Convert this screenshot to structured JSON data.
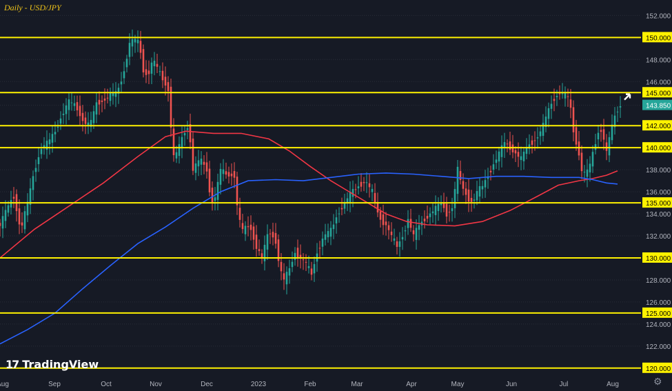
{
  "chart_data": {
    "type": "candlestick",
    "title": "Daily - USD/JPY",
    "ylim": [
      119.3,
      153.4
    ],
    "y_ticks": [
      "152.000",
      "150.000",
      "148.000",
      "146.000",
      "145.000",
      "143.850",
      "142.000",
      "140.000",
      "138.000",
      "136.000",
      "135.000",
      "134.000",
      "132.000",
      "130.000",
      "128.000",
      "126.000",
      "125.000",
      "124.000",
      "122.000",
      "120.000"
    ],
    "x_tick_labels": [
      "Aug",
      "Sep",
      "Oct",
      "Nov",
      "Dec",
      "2023",
      "Feb",
      "Mar",
      "Apr",
      "May",
      "Jun",
      "Jul",
      "Aug"
    ],
    "horizontal_levels": [
      150,
      145,
      142,
      140,
      135,
      130,
      125,
      120
    ],
    "last_price": "143.850",
    "price_path": [
      [
        0,
        133.0
      ],
      [
        10,
        134.5
      ],
      [
        20,
        135.6
      ],
      [
        30,
        132.5
      ],
      [
        40,
        135.0
      ],
      [
        50,
        138.0
      ],
      [
        60,
        140.0
      ],
      [
        70,
        140.5
      ],
      [
        80,
        141.5
      ],
      [
        90,
        143.0
      ],
      [
        100,
        144.2
      ],
      [
        110,
        143.8
      ],
      [
        120,
        142.5
      ],
      [
        130,
        142.0
      ],
      [
        140,
        144.0
      ],
      [
        150,
        144.3
      ],
      [
        160,
        144.8
      ],
      [
        170,
        145.0
      ],
      [
        180,
        147.0
      ],
      [
        188,
        149.5
      ],
      [
        196,
        149.8
      ],
      [
        202,
        149.5
      ],
      [
        208,
        147.0
      ],
      [
        214,
        146.5
      ],
      [
        222,
        148.0
      ],
      [
        230,
        147.0
      ],
      [
        238,
        146.0
      ],
      [
        246,
        145.0
      ],
      [
        250,
        139.0
      ],
      [
        256,
        139.5
      ],
      [
        262,
        140.5
      ],
      [
        268,
        141.5
      ],
      [
        274,
        142.0
      ],
      [
        280,
        138.0
      ],
      [
        290,
        139.0
      ],
      [
        300,
        138.0
      ],
      [
        306,
        135.0
      ],
      [
        312,
        135.5
      ],
      [
        320,
        138.0
      ],
      [
        330,
        137.5
      ],
      [
        340,
        137.5
      ],
      [
        345,
        134.0
      ],
      [
        352,
        132.5
      ],
      [
        362,
        133.0
      ],
      [
        372,
        131.0
      ],
      [
        380,
        130.0
      ],
      [
        390,
        132.5
      ],
      [
        400,
        131.5
      ],
      [
        406,
        129.0
      ],
      [
        412,
        128.0
      ],
      [
        420,
        129.0
      ],
      [
        428,
        130.5
      ],
      [
        436,
        130.0
      ],
      [
        444,
        129.5
      ],
      [
        452,
        128.5
      ],
      [
        460,
        130.5
      ],
      [
        470,
        132.0
      ],
      [
        480,
        132.5
      ],
      [
        490,
        134.0
      ],
      [
        500,
        135.0
      ],
      [
        510,
        136.0
      ],
      [
        520,
        136.5
      ],
      [
        530,
        137.0
      ],
      [
        540,
        136.0
      ],
      [
        546,
        134.5
      ],
      [
        552,
        133.5
      ],
      [
        560,
        133.0
      ],
      [
        568,
        132.0
      ],
      [
        576,
        131.0
      ],
      [
        584,
        132.0
      ],
      [
        592,
        133.5
      ],
      [
        600,
        132.0
      ],
      [
        608,
        133.0
      ],
      [
        616,
        133.5
      ],
      [
        624,
        134.0
      ],
      [
        632,
        134.5
      ],
      [
        640,
        135.0
      ],
      [
        648,
        134.0
      ],
      [
        656,
        134.5
      ],
      [
        664,
        138.0
      ],
      [
        670,
        136.5
      ],
      [
        678,
        135.5
      ],
      [
        686,
        135.0
      ],
      [
        692,
        136.0
      ],
      [
        700,
        136.5
      ],
      [
        708,
        137.5
      ],
      [
        716,
        138.5
      ],
      [
        724,
        139.5
      ],
      [
        732,
        140.5
      ],
      [
        740,
        140.0
      ],
      [
        748,
        139.5
      ],
      [
        756,
        139.0
      ],
      [
        764,
        140.0
      ],
      [
        772,
        140.5
      ],
      [
        780,
        141.0
      ],
      [
        788,
        142.0
      ],
      [
        796,
        143.5
      ],
      [
        804,
        144.5
      ],
      [
        812,
        145.0
      ],
      [
        818,
        144.8
      ],
      [
        826,
        144.5
      ],
      [
        832,
        141.5
      ],
      [
        838,
        140.0
      ],
      [
        844,
        138.0
      ],
      [
        850,
        137.5
      ],
      [
        856,
        138.5
      ],
      [
        862,
        140.0
      ],
      [
        868,
        141.5
      ],
      [
        874,
        141.5
      ],
      [
        880,
        139.5
      ],
      [
        886,
        141.5
      ],
      [
        890,
        142.5
      ],
      [
        896,
        143.5
      ],
      [
        900,
        143.85
      ]
    ],
    "series": [
      {
        "name": "",
        "color": "#f23645",
        "points": [
          [
            0,
            130.0
          ],
          [
            50,
            132.6
          ],
          [
            100,
            134.7
          ],
          [
            150,
            136.8
          ],
          [
            200,
            139.2
          ],
          [
            240,
            141.0
          ],
          [
            270,
            141.5
          ],
          [
            310,
            141.3
          ],
          [
            350,
            141.3
          ],
          [
            390,
            140.8
          ],
          [
            420,
            139.7
          ],
          [
            450,
            138.3
          ],
          [
            480,
            137.0
          ],
          [
            520,
            135.5
          ],
          [
            560,
            134.0
          ],
          [
            590,
            133.3
          ],
          [
            620,
            133.0
          ],
          [
            660,
            132.9
          ],
          [
            700,
            133.3
          ],
          [
            740,
            134.3
          ],
          [
            780,
            135.6
          ],
          [
            810,
            136.6
          ],
          [
            840,
            137.0
          ],
          [
            860,
            137.2
          ],
          [
            880,
            137.5
          ],
          [
            896,
            137.9
          ]
        ]
      },
      {
        "name": "",
        "color": "#2962ff",
        "points": [
          [
            0,
            122.2
          ],
          [
            40,
            123.5
          ],
          [
            80,
            125.0
          ],
          [
            120,
            127.2
          ],
          [
            160,
            129.3
          ],
          [
            200,
            131.3
          ],
          [
            240,
            132.8
          ],
          [
            280,
            134.5
          ],
          [
            320,
            136.0
          ],
          [
            360,
            137.0
          ],
          [
            400,
            137.1
          ],
          [
            440,
            137.0
          ],
          [
            480,
            137.3
          ],
          [
            520,
            137.6
          ],
          [
            560,
            137.7
          ],
          [
            600,
            137.6
          ],
          [
            640,
            137.4
          ],
          [
            680,
            137.2
          ],
          [
            720,
            137.4
          ],
          [
            760,
            137.4
          ],
          [
            800,
            137.3
          ],
          [
            840,
            137.3
          ],
          [
            860,
            137.1
          ],
          [
            880,
            136.8
          ],
          [
            896,
            136.7
          ]
        ]
      }
    ],
    "grid": true,
    "legend": "none"
  },
  "watermark": "TradingView",
  "colors": {
    "background": "#161a25",
    "level_line": "#fff200",
    "up_candle": "#26a69a",
    "down_candle": "#ef5350",
    "axis_text": "#b2b5be",
    "price_badge": "#26a69a"
  },
  "icons": {
    "settings": "gear-icon",
    "arrow": "arrow-annotation-icon"
  }
}
